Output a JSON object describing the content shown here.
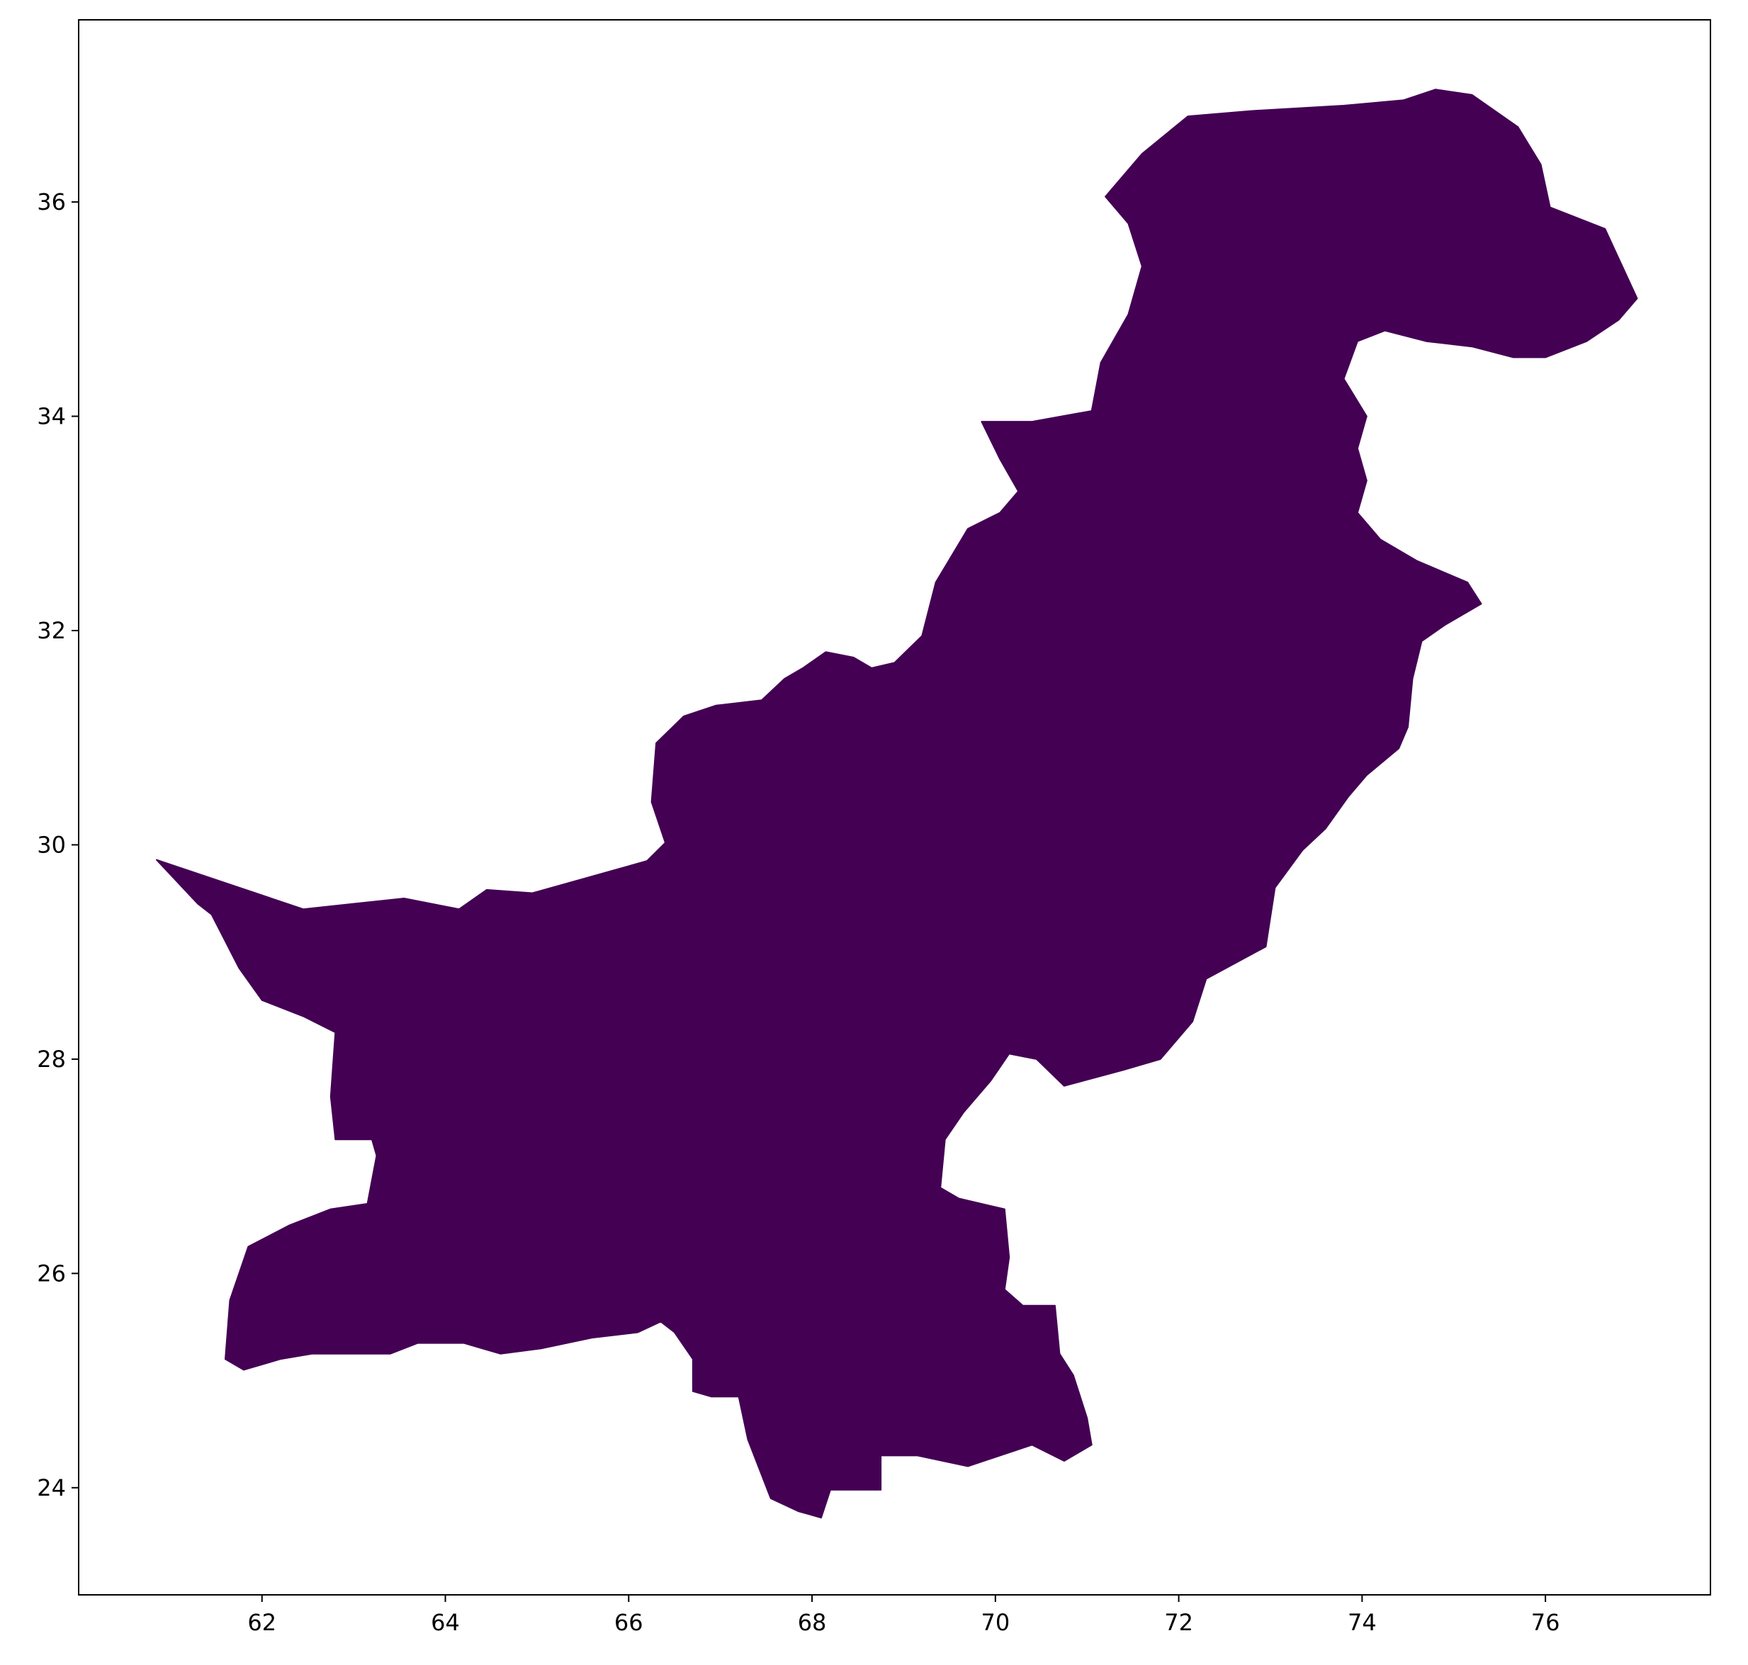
{
  "colors": {
    "fill": "#440154",
    "axes": "#000000",
    "background": "#ffffff"
  },
  "chart_data": {
    "type": "choropleth-map",
    "title": "",
    "xlabel": "",
    "ylabel": "",
    "xlim": [
      60.0,
      77.8
    ],
    "ylim": [
      23.0,
      37.7
    ],
    "grid": false,
    "legend": "none",
    "x_ticks": [
      62,
      64,
      66,
      68,
      70,
      72,
      74,
      76
    ],
    "y_ticks": [
      24,
      26,
      28,
      30,
      32,
      34,
      36
    ],
    "x_tick_labels": [
      "62",
      "64",
      "66",
      "68",
      "70",
      "72",
      "74",
      "76"
    ],
    "y_tick_labels": [
      "24",
      "26",
      "28",
      "30",
      "32",
      "34",
      "36"
    ],
    "regions": [
      {
        "fill": "#440154",
        "outline_lonlat": [
          [
            60.85,
            29.86
          ],
          [
            62.45,
            29.4
          ],
          [
            63.55,
            29.5
          ],
          [
            64.15,
            29.4
          ],
          [
            64.45,
            29.58
          ],
          [
            64.95,
            29.55
          ],
          [
            66.2,
            29.85
          ],
          [
            66.4,
            30.02
          ],
          [
            66.25,
            30.4
          ],
          [
            66.3,
            30.95
          ],
          [
            66.6,
            31.2
          ],
          [
            66.95,
            31.3
          ],
          [
            67.45,
            31.35
          ],
          [
            67.7,
            31.55
          ],
          [
            67.9,
            31.65
          ],
          [
            68.15,
            31.8
          ],
          [
            68.45,
            31.75
          ],
          [
            68.65,
            31.65
          ],
          [
            68.9,
            31.7
          ],
          [
            69.2,
            31.95
          ],
          [
            69.35,
            32.45
          ],
          [
            69.7,
            32.95
          ],
          [
            70.05,
            33.1
          ],
          [
            70.25,
            33.3
          ],
          [
            70.05,
            33.6
          ],
          [
            69.85,
            33.95
          ],
          [
            70.4,
            33.95
          ],
          [
            71.05,
            34.05
          ],
          [
            71.15,
            34.5
          ],
          [
            71.45,
            34.95
          ],
          [
            71.6,
            35.4
          ],
          [
            71.45,
            35.8
          ],
          [
            71.2,
            36.05
          ],
          [
            71.6,
            36.45
          ],
          [
            72.1,
            36.8
          ],
          [
            72.8,
            36.85
          ],
          [
            73.8,
            36.9
          ],
          [
            74.45,
            36.95
          ],
          [
            74.8,
            37.05
          ],
          [
            75.2,
            37.0
          ],
          [
            75.7,
            36.7
          ],
          [
            75.95,
            36.35
          ],
          [
            76.05,
            35.95
          ],
          [
            76.65,
            35.75
          ],
          [
            77.0,
            35.1
          ],
          [
            76.8,
            34.9
          ],
          [
            76.45,
            34.7
          ],
          [
            76.0,
            34.55
          ],
          [
            75.65,
            34.55
          ],
          [
            75.2,
            34.65
          ],
          [
            74.7,
            34.7
          ],
          [
            74.25,
            34.8
          ],
          [
            73.95,
            34.7
          ],
          [
            73.8,
            34.35
          ],
          [
            74.05,
            34.0
          ],
          [
            73.95,
            33.7
          ],
          [
            74.05,
            33.4
          ],
          [
            73.95,
            33.1
          ],
          [
            74.2,
            32.85
          ],
          [
            74.6,
            32.65
          ],
          [
            75.15,
            32.45
          ],
          [
            75.3,
            32.25
          ],
          [
            74.9,
            32.05
          ],
          [
            74.65,
            31.9
          ],
          [
            74.55,
            31.55
          ],
          [
            74.5,
            31.1
          ],
          [
            74.4,
            30.9
          ],
          [
            74.05,
            30.65
          ],
          [
            73.85,
            30.45
          ],
          [
            73.6,
            30.15
          ],
          [
            73.35,
            29.95
          ],
          [
            73.05,
            29.6
          ],
          [
            72.95,
            29.05
          ],
          [
            72.3,
            28.75
          ],
          [
            72.15,
            28.35
          ],
          [
            71.8,
            28.0
          ],
          [
            71.4,
            27.9
          ],
          [
            70.75,
            27.75
          ],
          [
            70.45,
            28.0
          ],
          [
            70.15,
            28.05
          ],
          [
            69.95,
            27.8
          ],
          [
            69.65,
            27.5
          ],
          [
            69.45,
            27.25
          ],
          [
            69.4,
            26.8
          ],
          [
            69.6,
            26.7
          ],
          [
            70.1,
            26.6
          ],
          [
            70.15,
            26.15
          ],
          [
            70.1,
            25.85
          ],
          [
            70.3,
            25.7
          ],
          [
            70.65,
            25.7
          ],
          [
            70.7,
            25.25
          ],
          [
            70.85,
            25.05
          ],
          [
            71.0,
            24.65
          ],
          [
            71.05,
            24.4
          ],
          [
            70.75,
            24.25
          ],
          [
            70.4,
            24.4
          ],
          [
            70.05,
            24.3
          ],
          [
            69.7,
            24.2
          ],
          [
            69.15,
            24.3
          ],
          [
            68.75,
            24.3
          ],
          [
            68.75,
            23.98
          ],
          [
            68.2,
            23.98
          ],
          [
            68.1,
            23.72
          ],
          [
            67.85,
            23.78
          ],
          [
            67.55,
            23.9
          ],
          [
            67.3,
            24.45
          ],
          [
            67.2,
            24.85
          ],
          [
            66.9,
            24.85
          ],
          [
            66.7,
            24.9
          ],
          [
            66.7,
            25.2
          ],
          [
            66.5,
            25.45
          ],
          [
            66.35,
            25.55
          ],
          [
            66.1,
            25.45
          ],
          [
            65.6,
            25.4
          ],
          [
            65.05,
            25.3
          ],
          [
            64.6,
            25.25
          ],
          [
            64.2,
            25.35
          ],
          [
            63.7,
            25.35
          ],
          [
            63.4,
            25.25
          ],
          [
            63.0,
            25.25
          ],
          [
            62.55,
            25.25
          ],
          [
            62.2,
            25.2
          ],
          [
            61.8,
            25.1
          ],
          [
            61.6,
            25.2
          ],
          [
            61.65,
            25.75
          ],
          [
            61.85,
            26.25
          ],
          [
            62.3,
            26.45
          ],
          [
            62.75,
            26.6
          ],
          [
            63.15,
            26.65
          ],
          [
            63.25,
            27.1
          ],
          [
            63.2,
            27.25
          ],
          [
            62.8,
            27.25
          ],
          [
            62.75,
            27.65
          ],
          [
            62.8,
            28.25
          ],
          [
            62.45,
            28.4
          ],
          [
            62.0,
            28.55
          ],
          [
            61.75,
            28.85
          ],
          [
            61.45,
            29.35
          ],
          [
            61.3,
            29.45
          ],
          [
            60.85,
            29.86
          ]
        ]
      }
    ]
  }
}
